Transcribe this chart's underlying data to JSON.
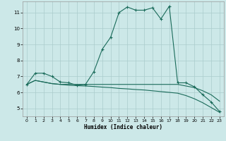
{
  "xlabel": "Humidex (Indice chaleur)",
  "bg_color": "#cce8e8",
  "grid_color": "#aacccc",
  "line_color": "#1a6b5a",
  "xlim": [
    -0.5,
    23.5
  ],
  "ylim": [
    4.5,
    11.7
  ],
  "xticks": [
    0,
    1,
    2,
    3,
    4,
    5,
    6,
    7,
    8,
    9,
    10,
    11,
    12,
    13,
    14,
    15,
    16,
    17,
    18,
    19,
    20,
    21,
    22,
    23
  ],
  "yticks": [
    5,
    6,
    7,
    8,
    9,
    10,
    11
  ],
  "line1_x": [
    0,
    1,
    2,
    3,
    4,
    5,
    6,
    7,
    8,
    9,
    10,
    11,
    12,
    13,
    14,
    15,
    16,
    17,
    18,
    19,
    20,
    21,
    22,
    23
  ],
  "line1_y": [
    6.5,
    7.2,
    7.2,
    7.0,
    6.65,
    6.6,
    6.45,
    6.5,
    7.3,
    8.7,
    9.45,
    11.0,
    11.35,
    11.15,
    11.15,
    11.3,
    10.6,
    11.4,
    6.6,
    6.6,
    6.35,
    5.85,
    5.4,
    4.8
  ],
  "line2_x": [
    0,
    1,
    2,
    3,
    4,
    5,
    6,
    7,
    8,
    9,
    10,
    11,
    12,
    13,
    14,
    15,
    16,
    17,
    18,
    19,
    20,
    21,
    22,
    23
  ],
  "line2_y": [
    6.5,
    6.75,
    6.65,
    6.55,
    6.5,
    6.5,
    6.5,
    6.5,
    6.5,
    6.5,
    6.5,
    6.5,
    6.5,
    6.5,
    6.5,
    6.5,
    6.5,
    6.5,
    6.5,
    6.4,
    6.3,
    6.1,
    5.85,
    5.45
  ],
  "line3_x": [
    0,
    1,
    2,
    3,
    4,
    5,
    6,
    7,
    8,
    9,
    10,
    11,
    12,
    13,
    14,
    15,
    16,
    17,
    18,
    19,
    20,
    21,
    22,
    23
  ],
  "line3_y": [
    6.5,
    6.75,
    6.65,
    6.55,
    6.5,
    6.45,
    6.42,
    6.4,
    6.37,
    6.33,
    6.3,
    6.25,
    6.22,
    6.18,
    6.15,
    6.1,
    6.05,
    6.0,
    5.95,
    5.8,
    5.6,
    5.35,
    5.05,
    4.75
  ]
}
